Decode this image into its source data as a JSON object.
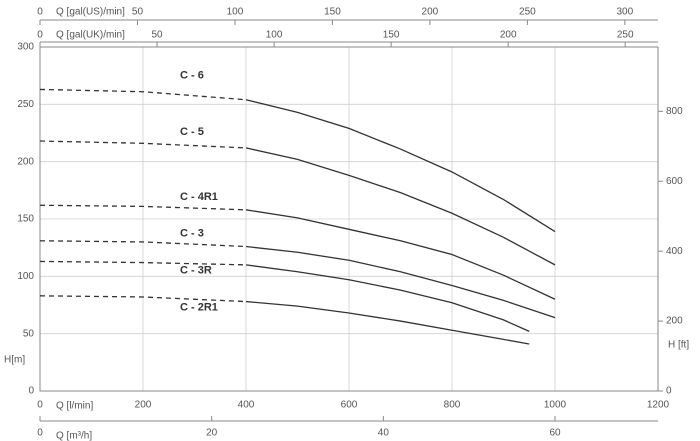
{
  "chart_data": {
    "type": "line",
    "xlabel": "Q [l/min]",
    "ylabel": "H[m]",
    "y2label": "H [ft]",
    "xlim": [
      0,
      1200
    ],
    "xticks": [
      0,
      200,
      400,
      600,
      800,
      1000,
      1200
    ],
    "ylim": [
      0,
      300
    ],
    "yticks": [
      0,
      50,
      100,
      150,
      200,
      250,
      300
    ],
    "y2lim": [
      0,
      984
    ],
    "y2ticks": [
      0,
      200,
      400,
      600,
      800
    ],
    "extra_x_axes": [
      {
        "label": "Q [gal(US)/min]",
        "lim": [
          0,
          317
        ],
        "ticks": [
          0,
          50,
          100,
          150,
          200,
          250,
          300
        ]
      },
      {
        "label": "Q [gal(UK)/min]",
        "lim": [
          0,
          264
        ],
        "ticks": [
          0,
          50,
          100,
          150,
          200,
          250
        ]
      },
      {
        "label": "Q [m³/h]",
        "lim": [
          0,
          72
        ],
        "ticks": [
          0,
          20,
          40,
          60
        ]
      }
    ],
    "solid_from": 400,
    "grid": true,
    "color": "#333333",
    "series": [
      {
        "name": "C - 6",
        "x": [
          0,
          200,
          400,
          500,
          600,
          700,
          800,
          900,
          1000
        ],
        "values": [
          263,
          261,
          254,
          243,
          229,
          211,
          191,
          167,
          139
        ]
      },
      {
        "name": "C - 5",
        "x": [
          0,
          200,
          400,
          500,
          600,
          700,
          800,
          900,
          1000
        ],
        "values": [
          218,
          216,
          212,
          202,
          188,
          173,
          155,
          134,
          110
        ]
      },
      {
        "name": "C - 4R1",
        "x": [
          0,
          200,
          400,
          500,
          600,
          700,
          800,
          900,
          1000
        ],
        "values": [
          162,
          161,
          158,
          151,
          141,
          131,
          119,
          101,
          80
        ]
      },
      {
        "name": "C - 3",
        "x": [
          0,
          200,
          400,
          500,
          600,
          700,
          800,
          900,
          1000
        ],
        "values": [
          131,
          130,
          126,
          121,
          114,
          104,
          92,
          79,
          64
        ]
      },
      {
        "name": "C - 3R",
        "x": [
          0,
          200,
          400,
          500,
          600,
          700,
          800,
          900,
          950
        ],
        "values": [
          113,
          112,
          110,
          104,
          97,
          88,
          77,
          62,
          52
        ]
      },
      {
        "name": "C - 2R1",
        "x": [
          0,
          200,
          400,
          500,
          600,
          700,
          800,
          900,
          950
        ],
        "values": [
          83,
          82,
          78,
          74,
          68,
          61,
          53,
          45,
          41
        ]
      }
    ]
  }
}
